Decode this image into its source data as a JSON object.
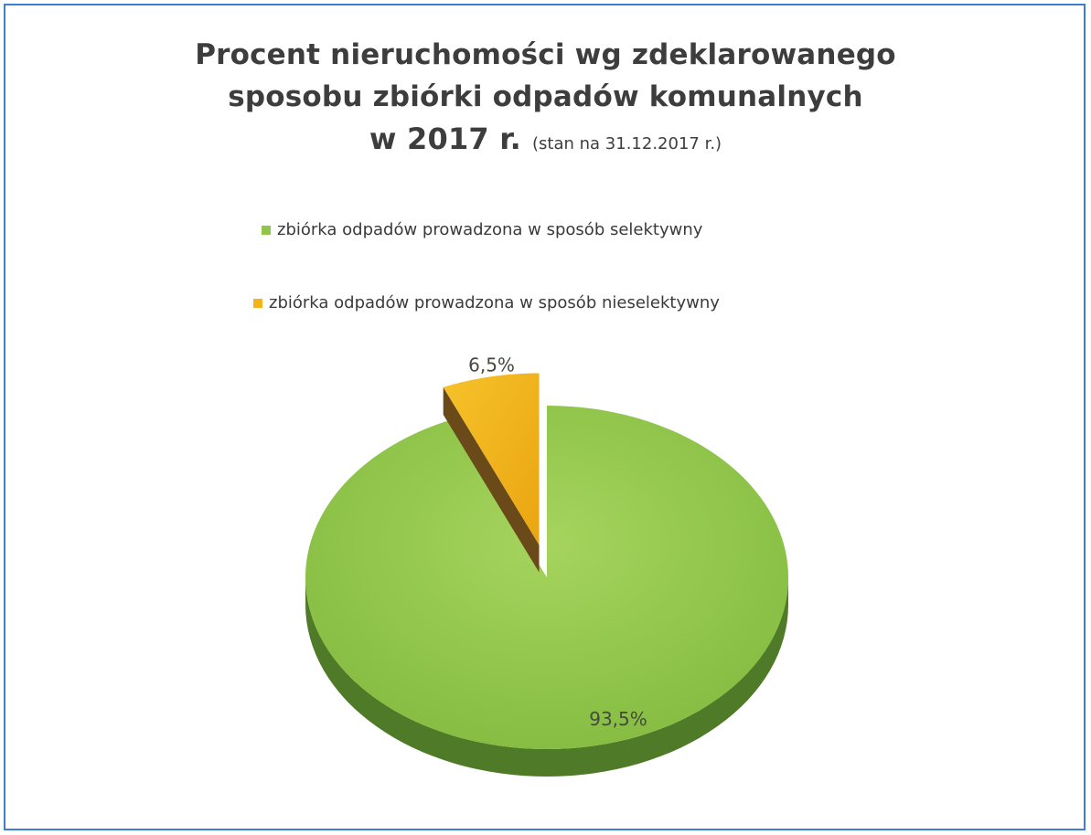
{
  "chart_data": {
    "type": "pie",
    "title_lines": [
      "Procent nieruchomości wg zdeklarowanego",
      "sposobu zbiórki odpadów komunalnych"
    ],
    "title_year": "w  2017 r.",
    "subtitle": "(stan na 31.12.2017 r.)",
    "legend_position": "top",
    "slices": [
      {
        "name": "zbiórka odpadów prowadzona w sposób selektywny",
        "value": 93.5,
        "label": "93,5%",
        "color": "#8fc64a",
        "side_color": "#4f7a28"
      },
      {
        "name": "zbiórka odpadów prowadzona w sposób nieselektywny",
        "value": 6.5,
        "label": "6,5%",
        "color": "#f2b418",
        "side_color": "#6b4a1a"
      }
    ]
  }
}
